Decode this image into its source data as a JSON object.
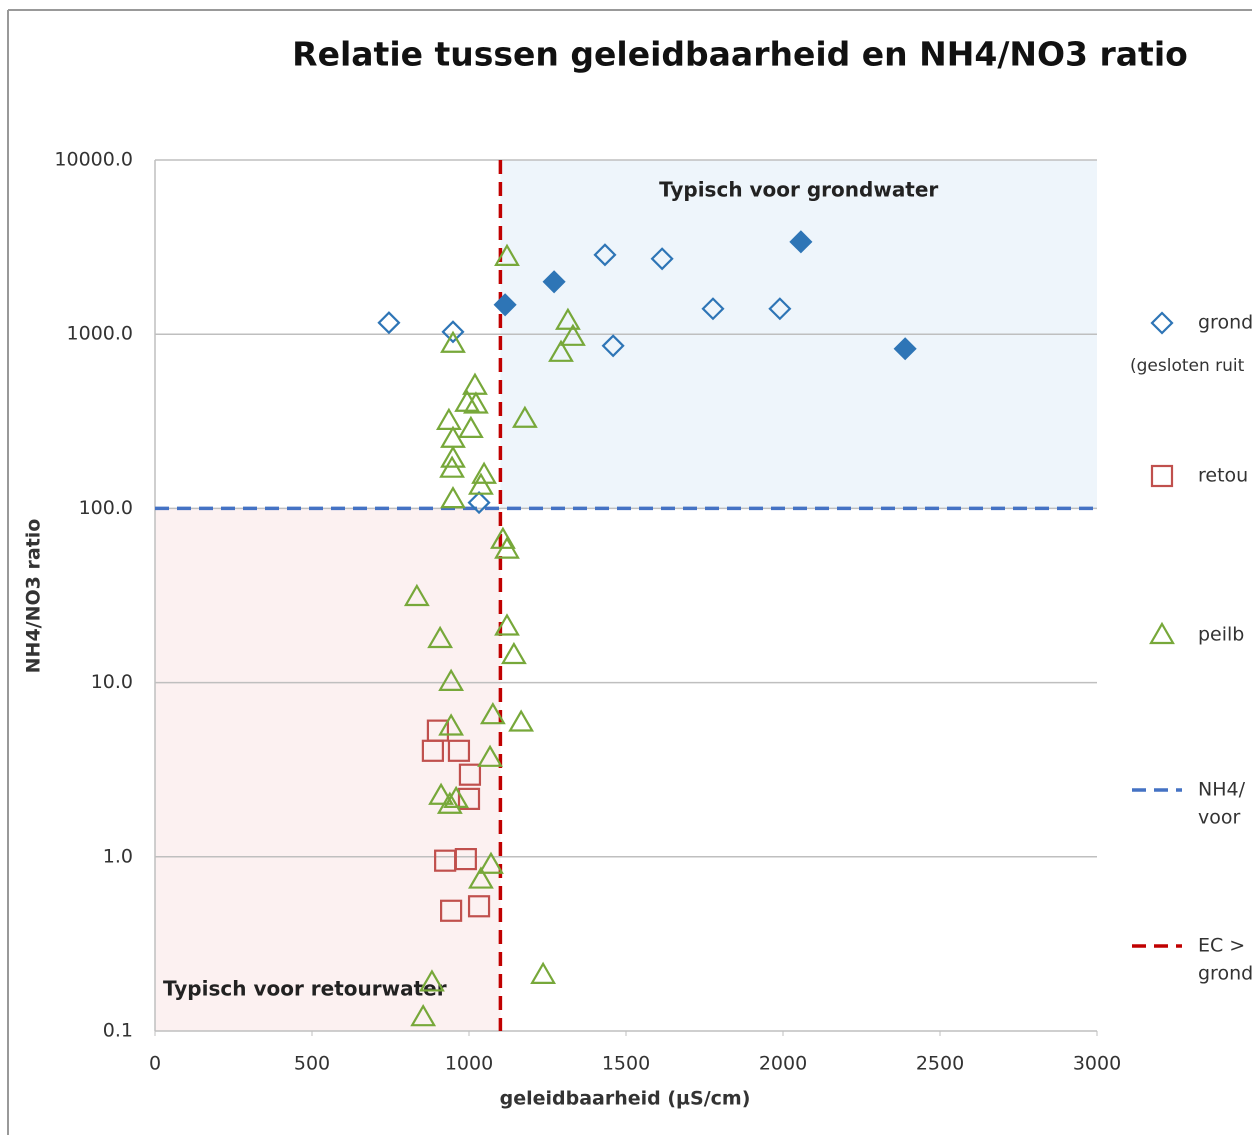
{
  "chart_data": {
    "type": "scatter",
    "title": "Relatie tussen geleidbaarheid en NH4/NO3 ratio",
    "xlabel": "geleidbaarheid (µS/cm)",
    "ylabel": "NH4/NO3 ratio",
    "xlim": [
      0,
      3000
    ],
    "xticks": [
      0,
      500,
      1000,
      1500,
      2000,
      2500,
      3000
    ],
    "ylim": [
      0.1,
      10000
    ],
    "yscale": "log",
    "yticks": [
      {
        "value": 0.1,
        "label": "0.1"
      },
      {
        "value": 1,
        "label": "1.0"
      },
      {
        "value": 10,
        "label": "10.0"
      },
      {
        "value": 100,
        "label": "100.0"
      },
      {
        "value": 1000,
        "label": "1000.0"
      },
      {
        "value": 10000,
        "label": "10000.0"
      }
    ],
    "grid": true,
    "regions": [
      {
        "label": "Typisch voor grondwater",
        "label_corner": "top",
        "xlim": [
          1100,
          3000
        ],
        "ylim": [
          100,
          10000
        ],
        "color": "#eef5fb"
      },
      {
        "label": "Typisch voor retourwater",
        "label_corner": "bottom-left",
        "xlim": [
          0,
          1100
        ],
        "ylim": [
          0.1,
          100
        ],
        "color": "#fcf1f1"
      }
    ],
    "series": [
      {
        "name": "grond",
        "note": "(gesloten ruit",
        "color": "#2e75b6",
        "marker": "diamond",
        "filled": false,
        "x": [
          745,
          949,
          1433,
          1615,
          1777,
          1990,
          1459,
          1032
        ],
        "values": [
          1164,
          1032,
          2855,
          2710,
          1400,
          1400,
          858,
          108
        ]
      },
      {
        "color": "#2e75b6",
        "marker": "diamond",
        "filled": true,
        "x": [
          1115,
          1271,
          2057,
          2389
        ],
        "values": [
          1475,
          2000,
          3390,
          825
        ]
      },
      {
        "name": "retou",
        "color": "#c0504d",
        "marker": "square",
        "filled": false,
        "x": [
          901,
          885,
          968,
          1003,
          1000,
          924,
          990,
          943,
          1032
        ],
        "values": [
          5.3,
          4.06,
          4.06,
          2.96,
          2.15,
          0.95,
          0.97,
          0.49,
          0.52
        ]
      },
      {
        "name": "peilb",
        "color": "#77a83a",
        "marker": "triangle",
        "filled": false,
        "x": [
          1121,
          1315,
          1331,
          1293,
          949,
          1019,
          994,
          1022,
          936,
          1006,
          1178,
          949,
          949,
          946,
          1048,
          1038,
          949,
          1108,
          1121,
          834,
          1121,
          908,
          1143,
          943,
          1076,
          1166,
          943,
          1067,
          911,
          959,
          939,
          1070,
          1038,
          1236,
          882,
          854
        ],
        "values": [
          2780,
          1194,
          966,
          782,
          881,
          506,
          404,
          395,
          318,
          286,
          327,
          251,
          193,
          169,
          156,
          135,
          113,
          66,
          58,
          31,
          21,
          17.8,
          14.4,
          10.1,
          6.5,
          5.9,
          5.6,
          3.7,
          2.24,
          2.15,
          1.99,
          0.9,
          0.74,
          0.21,
          0.19,
          0.12
        ]
      }
    ],
    "reference_lines": [
      {
        "name": [
          "NH4/",
          "voor"
        ],
        "axis": "y",
        "value": 100,
        "color": "#4472c4"
      },
      {
        "name": [
          "EC >",
          "grond"
        ],
        "axis": "x",
        "value": 1100,
        "color": "#c00000"
      }
    ]
  }
}
